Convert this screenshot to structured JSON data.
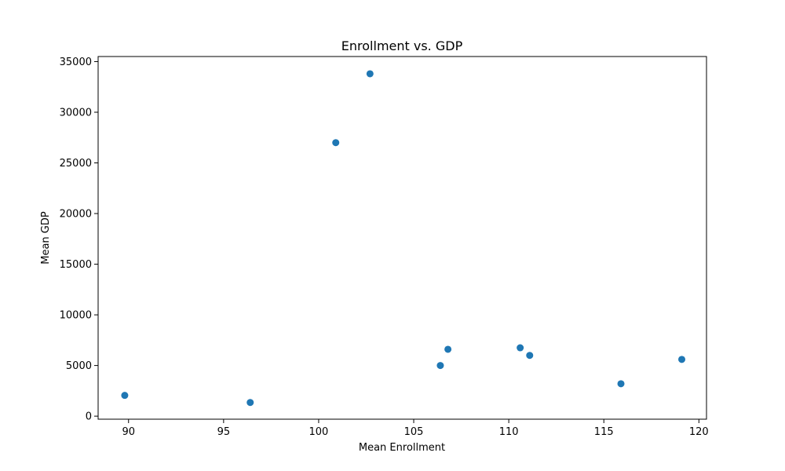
{
  "chart_data": {
    "type": "scatter",
    "title": "Enrollment vs. GDP",
    "xlabel": "Mean Enrollment",
    "ylabel": "Mean GDP",
    "xlim": [
      88.4,
      120.4
    ],
    "ylim": [
      -300,
      35500
    ],
    "xticks": [
      90,
      95,
      100,
      105,
      110,
      115,
      120
    ],
    "yticks": [
      0,
      5000,
      10000,
      15000,
      20000,
      25000,
      30000,
      35000
    ],
    "grid": false,
    "marker_color": "#1f77b4",
    "points": [
      {
        "x": 89.8,
        "y": 2050
      },
      {
        "x": 96.4,
        "y": 1350
      },
      {
        "x": 100.9,
        "y": 27000
      },
      {
        "x": 102.7,
        "y": 33800
      },
      {
        "x": 106.4,
        "y": 5000
      },
      {
        "x": 106.8,
        "y": 6600
      },
      {
        "x": 110.6,
        "y": 6750
      },
      {
        "x": 111.1,
        "y": 6000
      },
      {
        "x": 115.9,
        "y": 3200
      },
      {
        "x": 119.1,
        "y": 5600
      }
    ]
  }
}
